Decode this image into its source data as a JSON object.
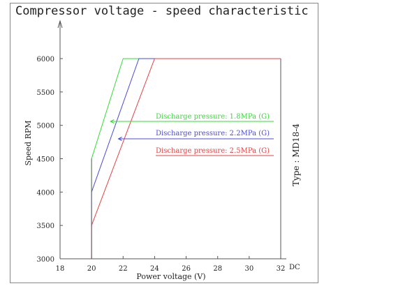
{
  "title": "Compressor voltage - speed characteristic",
  "type_label": "Type : MD18-4",
  "chart_data": {
    "type": "line",
    "title": "Compressor voltage - speed characteristic",
    "xlabel": "Power voltage (V)",
    "ylabel": "Speed RPM",
    "x_unit": "DC",
    "xlim": [
      18,
      32
    ],
    "ylim": [
      3000,
      6000
    ],
    "x_ticks": [
      "18",
      "20",
      "22",
      "24",
      "26",
      "28",
      "30",
      "32"
    ],
    "y_ticks": [
      "3000",
      "3500",
      "4000",
      "4500",
      "5000",
      "5500",
      "6000"
    ],
    "grid": false,
    "series": [
      {
        "name": "Discharge pressure: 1.8MPa (G)",
        "color": "#33dd33",
        "x": [
          20,
          20,
          22,
          32
        ],
        "y": [
          3000,
          4500,
          6000,
          6000
        ]
      },
      {
        "name": "Discharge pressure: 2.2MPa (G)",
        "color": "#4a4ae0",
        "x": [
          20,
          20,
          23,
          32
        ],
        "y": [
          3000,
          4000,
          6000,
          6000
        ]
      },
      {
        "name": "Discharge pressure: 2.5MPa (G)",
        "color": "#e84040",
        "x": [
          20,
          20,
          24,
          32
        ],
        "y": [
          3000,
          3500,
          6000,
          6000
        ]
      }
    ]
  }
}
